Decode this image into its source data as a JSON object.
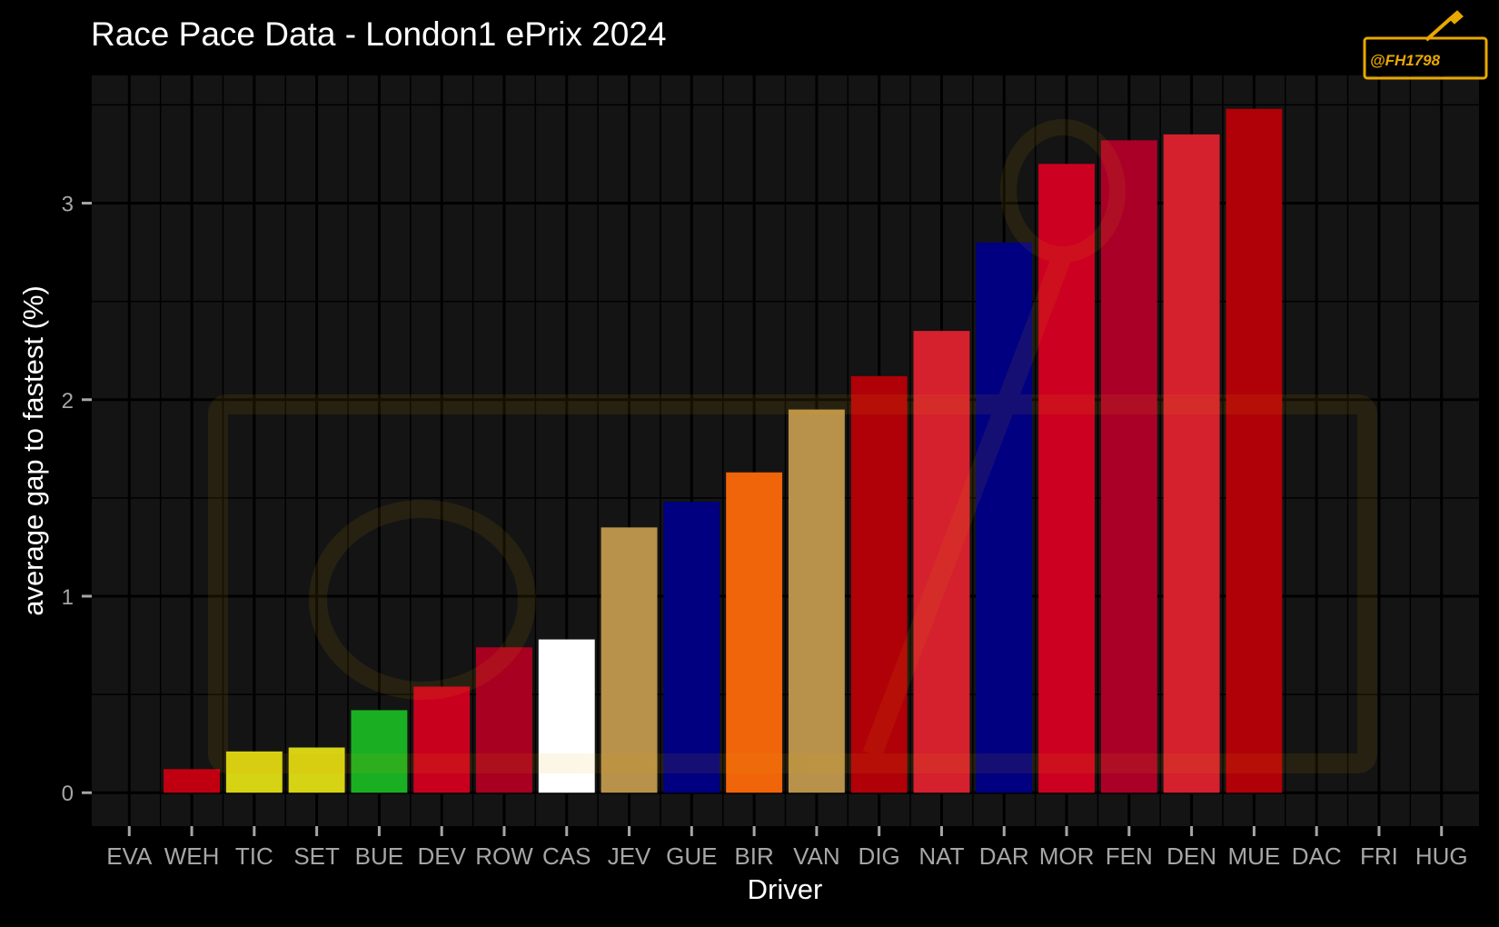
{
  "chart_data": {
    "type": "bar",
    "title": "Race Pace Data - London1 ePrix 2024",
    "xlabel": "Driver",
    "ylabel": "average gap to fastest (%)",
    "ylim": [
      -0.17,
      3.65
    ],
    "yticks": [
      0,
      1,
      2,
      3
    ],
    "grid": true,
    "legend": "none",
    "watermark": "@FH1798",
    "categories": [
      "EVA",
      "WEH",
      "TIC",
      "SET",
      "BUE",
      "DEV",
      "ROW",
      "CAS",
      "JEV",
      "GUE",
      "BIR",
      "VAN",
      "DIG",
      "NAT",
      "DAR",
      "MOR",
      "FEN",
      "DEN",
      "MUE",
      "DAC",
      "FRI",
      "HUG"
    ],
    "values": [
      0,
      0.12,
      0.21,
      0.23,
      0.42,
      0.54,
      0.74,
      0.78,
      1.35,
      1.48,
      1.63,
      1.95,
      2.12,
      2.35,
      2.8,
      3.2,
      3.32,
      3.35,
      3.48,
      null,
      null,
      null
    ],
    "colors": [
      "#c00010",
      "#c00010",
      "#d6d214",
      "#d6d214",
      "#1aaf22",
      "#c8001e",
      "#a80020",
      "#ffffff",
      "#b8924a",
      "#000080",
      "#f0640a",
      "#b8924a",
      "#b00008",
      "#d5202e",
      "#000080",
      "#cc0020",
      "#aa0028",
      "#d5202e",
      "#b00008",
      "#000000",
      "#000000",
      "#000000"
    ]
  },
  "colors": {
    "background": "#000000",
    "panel": "#141414",
    "grid": "#000000",
    "tick_text": "#a6a6a6",
    "watermark": "#e8a800"
  }
}
